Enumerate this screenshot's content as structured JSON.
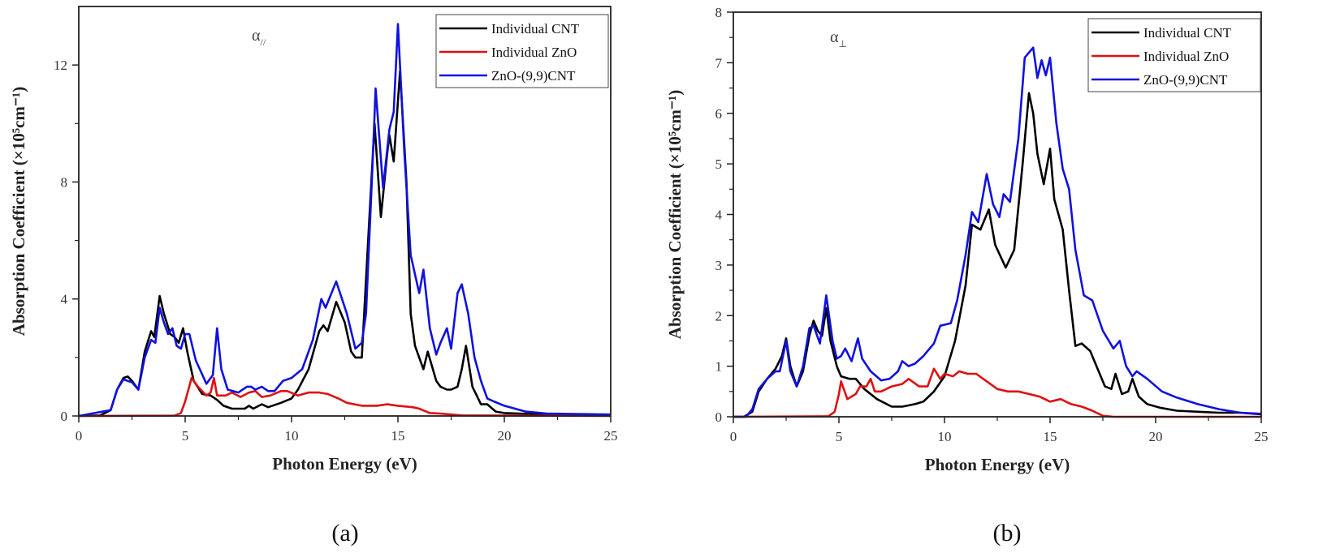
{
  "chart_data": [
    {
      "type": "line",
      "panel_label": "(a)",
      "annotation": "α",
      "annotation_sub": "//",
      "xlabel": "Photon Energy (eV)",
      "ylabel": "Absorption Coefficient (×10⁵cm⁻¹)",
      "xlim": [
        0,
        25
      ],
      "ylim": [
        0,
        14
      ],
      "xticks": [
        0,
        5,
        10,
        15,
        20,
        25
      ],
      "yticks": [
        0,
        4,
        8,
        12
      ],
      "grid": false,
      "legend_position": "top-right",
      "series": [
        {
          "name": "Individual CNT",
          "color": "#000000",
          "x": [
            0,
            1,
            1.5,
            1.8,
            2.1,
            2.3,
            2.5,
            2.8,
            3.1,
            3.4,
            3.55,
            3.8,
            4.0,
            4.3,
            4.5,
            4.7,
            4.9,
            5.1,
            5.4,
            5.8,
            6.2,
            6.5,
            6.8,
            7.2,
            7.8,
            8.0,
            8.2,
            8.6,
            8.9,
            9.5,
            10.0,
            10.3,
            10.8,
            11.3,
            11.5,
            11.7,
            12.1,
            12.5,
            12.8,
            13.0,
            13.3,
            13.6,
            13.9,
            14.2,
            14.5,
            14.6,
            14.8,
            15.1,
            15.4,
            15.6,
            15.8,
            16.0,
            16.2,
            16.4,
            16.8,
            17.0,
            17.3,
            17.5,
            17.8,
            18.0,
            18.2,
            18.5,
            18.9,
            19.2,
            19.6,
            20,
            22,
            25
          ],
          "y": [
            0,
            0.02,
            0.2,
            0.9,
            1.3,
            1.35,
            1.2,
            0.9,
            2.2,
            2.9,
            2.7,
            4.1,
            3.5,
            2.8,
            2.7,
            2.5,
            3.0,
            2.2,
            1.2,
            0.75,
            0.7,
            0.55,
            0.35,
            0.25,
            0.25,
            0.35,
            0.25,
            0.4,
            0.3,
            0.45,
            0.6,
            0.9,
            1.6,
            2.9,
            3.1,
            2.9,
            3.9,
            3.2,
            2.2,
            2.0,
            2.0,
            6.0,
            10.0,
            6.8,
            9.0,
            9.6,
            8.7,
            11.8,
            8.0,
            3.5,
            2.4,
            2.0,
            1.6,
            2.2,
            1.2,
            1.0,
            0.9,
            0.9,
            1.0,
            1.6,
            2.4,
            1.0,
            0.4,
            0.4,
            0.15,
            0.1,
            0.05,
            0.02
          ]
        },
        {
          "name": "Individual ZnO",
          "color": "#e01010",
          "x": [
            0,
            4.5,
            4.8,
            5.0,
            5.3,
            5.6,
            6.0,
            6.2,
            6.35,
            6.5,
            6.9,
            7.2,
            7.6,
            8.0,
            8.3,
            8.6,
            9.0,
            9.5,
            9.8,
            10.3,
            10.8,
            11.3,
            11.7,
            12.2,
            12.6,
            13.3,
            14,
            14.5,
            15,
            15.7,
            16,
            16.5,
            17,
            17.5,
            18,
            25
          ],
          "y": [
            0,
            0.01,
            0.1,
            0.5,
            1.3,
            1.0,
            0.7,
            0.8,
            1.3,
            0.7,
            0.7,
            0.8,
            0.65,
            0.8,
            0.85,
            0.65,
            0.7,
            0.85,
            0.85,
            0.7,
            0.8,
            0.8,
            0.75,
            0.6,
            0.45,
            0.35,
            0.35,
            0.4,
            0.35,
            0.3,
            0.25,
            0.1,
            0.08,
            0.05,
            0.02,
            0
          ]
        },
        {
          "name": "ZnO-(9,9)CNT",
          "color": "#1010e0",
          "x": [
            0,
            1.5,
            1.8,
            2.1,
            2.5,
            2.8,
            3.1,
            3.4,
            3.6,
            3.8,
            4.0,
            4.2,
            4.4,
            4.6,
            4.8,
            5.0,
            5.2,
            5.5,
            6.0,
            6.3,
            6.5,
            6.7,
            7.0,
            7.5,
            7.9,
            8.1,
            8.3,
            8.6,
            8.9,
            9.2,
            9.6,
            10.0,
            10.5,
            11.0,
            11.4,
            11.6,
            12.1,
            12.6,
            13.0,
            13.3,
            13.5,
            13.8,
            13.95,
            14.3,
            14.6,
            14.8,
            15.0,
            15.3,
            15.6,
            16.0,
            16.2,
            16.5,
            16.8,
            17.0,
            17.3,
            17.5,
            17.8,
            18.0,
            18.3,
            18.6,
            18.9,
            19.2,
            19.5,
            20,
            21,
            22,
            25
          ],
          "y": [
            0,
            0.2,
            0.9,
            1.25,
            1.15,
            0.9,
            2.0,
            2.6,
            2.5,
            3.7,
            3.2,
            2.8,
            3.0,
            2.4,
            2.3,
            2.8,
            2.8,
            1.9,
            1.1,
            1.4,
            3.0,
            1.6,
            0.9,
            0.8,
            1.0,
            1.0,
            0.9,
            1.0,
            0.85,
            0.85,
            1.2,
            1.3,
            1.6,
            2.6,
            4.0,
            3.7,
            4.6,
            3.5,
            2.3,
            2.5,
            3.5,
            8.5,
            11.2,
            7.8,
            9.8,
            10.4,
            13.4,
            9.0,
            5.5,
            4.2,
            5.0,
            3.0,
            2.1,
            2.5,
            3.0,
            2.3,
            4.2,
            4.5,
            3.5,
            2.0,
            1.2,
            0.6,
            0.5,
            0.35,
            0.15,
            0.08,
            0.05
          ]
        }
      ]
    },
    {
      "type": "line",
      "panel_label": "(b)",
      "annotation": "α",
      "annotation_sub": "⊥",
      "xlabel": "Photon Energy (eV)",
      "ylabel": "Absorption Coefficient (×10⁵cm⁻¹)",
      "xlim": [
        0,
        25
      ],
      "ylim": [
        0,
        8
      ],
      "xticks": [
        0,
        5,
        10,
        15,
        20,
        25
      ],
      "yticks": [
        0,
        1,
        2,
        3,
        4,
        5,
        6,
        7,
        8
      ],
      "grid": false,
      "legend_position": "top-right",
      "series": [
        {
          "name": "Individual CNT",
          "color": "#000000",
          "x": [
            0,
            0.5,
            0.9,
            1.2,
            1.6,
            2.0,
            2.3,
            2.5,
            2.7,
            3.0,
            3.3,
            3.6,
            3.8,
            4.0,
            4.2,
            4.4,
            4.6,
            4.9,
            5.1,
            5.5,
            5.8,
            6.2,
            6.8,
            7.5,
            8.0,
            8.6,
            9.0,
            9.5,
            10.0,
            10.5,
            11.0,
            11.3,
            11.7,
            12.1,
            12.4,
            12.9,
            13.3,
            13.7,
            14.0,
            14.2,
            14.4,
            14.7,
            15.0,
            15.2,
            15.6,
            15.9,
            16.2,
            16.5,
            16.9,
            17.2,
            17.6,
            17.9,
            18.1,
            18.4,
            18.7,
            18.9,
            19.2,
            19.6,
            20.2,
            21,
            22,
            23,
            24,
            25
          ],
          "y": [
            0,
            0,
            0.1,
            0.5,
            0.75,
            0.95,
            1.2,
            1.55,
            1.0,
            0.6,
            0.9,
            1.6,
            1.9,
            1.7,
            1.6,
            2.15,
            1.5,
            1.0,
            0.8,
            0.75,
            0.75,
            0.55,
            0.35,
            0.2,
            0.2,
            0.25,
            0.3,
            0.5,
            0.8,
            1.5,
            2.6,
            3.8,
            3.7,
            4.1,
            3.4,
            2.95,
            3.3,
            5.0,
            6.4,
            6.0,
            5.2,
            4.6,
            5.3,
            4.3,
            3.7,
            2.5,
            1.4,
            1.45,
            1.3,
            1.0,
            0.6,
            0.55,
            0.85,
            0.45,
            0.5,
            0.75,
            0.4,
            0.25,
            0.18,
            0.12,
            0.1,
            0.08,
            0.08,
            0.05
          ]
        },
        {
          "name": "Individual ZnO",
          "color": "#e01010",
          "x": [
            0,
            4.5,
            4.8,
            5.0,
            5.1,
            5.4,
            5.8,
            6.0,
            6.3,
            6.5,
            6.7,
            7.0,
            7.5,
            8.0,
            8.3,
            8.8,
            9.2,
            9.5,
            9.8,
            10.0,
            10.4,
            10.7,
            11.1,
            11.5,
            12,
            12.5,
            13,
            13.5,
            14,
            14.5,
            15,
            15.5,
            16,
            16.5,
            17,
            17.5,
            18,
            25
          ],
          "y": [
            0,
            0.01,
            0.1,
            0.45,
            0.7,
            0.35,
            0.45,
            0.6,
            0.6,
            0.75,
            0.5,
            0.5,
            0.6,
            0.65,
            0.75,
            0.6,
            0.6,
            0.95,
            0.75,
            0.85,
            0.8,
            0.9,
            0.85,
            0.85,
            0.7,
            0.55,
            0.5,
            0.5,
            0.45,
            0.4,
            0.3,
            0.35,
            0.25,
            0.2,
            0.12,
            0.02,
            0,
            0
          ]
        },
        {
          "name": "ZnO-(9,9)CNT",
          "color": "#1010e0",
          "x": [
            0,
            0.6,
            0.9,
            1.2,
            1.6,
            2.0,
            2.2,
            2.5,
            2.7,
            3.0,
            3.3,
            3.6,
            3.8,
            4.1,
            4.4,
            4.7,
            4.9,
            5.1,
            5.3,
            5.6,
            5.9,
            6.1,
            6.5,
            7.0,
            7.4,
            7.8,
            8.0,
            8.3,
            8.6,
            9.0,
            9.5,
            9.8,
            10.3,
            10.6,
            11.0,
            11.3,
            11.6,
            12.0,
            12.3,
            12.6,
            12.8,
            13.1,
            13.5,
            13.8,
            14.2,
            14.4,
            14.6,
            14.8,
            15.0,
            15.3,
            15.6,
            15.9,
            16.2,
            16.6,
            17.0,
            17.5,
            18.0,
            18.3,
            18.6,
            18.9,
            19.1,
            19.6,
            20.3,
            21,
            22,
            23,
            24,
            25
          ],
          "y": [
            0,
            0,
            0.15,
            0.55,
            0.75,
            0.9,
            0.9,
            1.5,
            0.9,
            0.6,
            1.0,
            1.75,
            1.8,
            1.45,
            2.4,
            1.5,
            1.15,
            1.2,
            1.35,
            1.1,
            1.55,
            1.15,
            0.9,
            0.72,
            0.75,
            0.9,
            1.1,
            1.0,
            1.05,
            1.2,
            1.45,
            1.8,
            1.85,
            2.3,
            3.2,
            4.05,
            3.85,
            4.8,
            4.2,
            3.95,
            4.4,
            4.25,
            5.5,
            7.1,
            7.3,
            6.7,
            7.05,
            6.75,
            7.1,
            5.8,
            4.9,
            4.5,
            3.3,
            2.4,
            2.3,
            1.7,
            1.35,
            1.5,
            1.0,
            0.8,
            0.9,
            0.75,
            0.5,
            0.38,
            0.25,
            0.15,
            0.08,
            0.06
          ]
        }
      ]
    }
  ]
}
